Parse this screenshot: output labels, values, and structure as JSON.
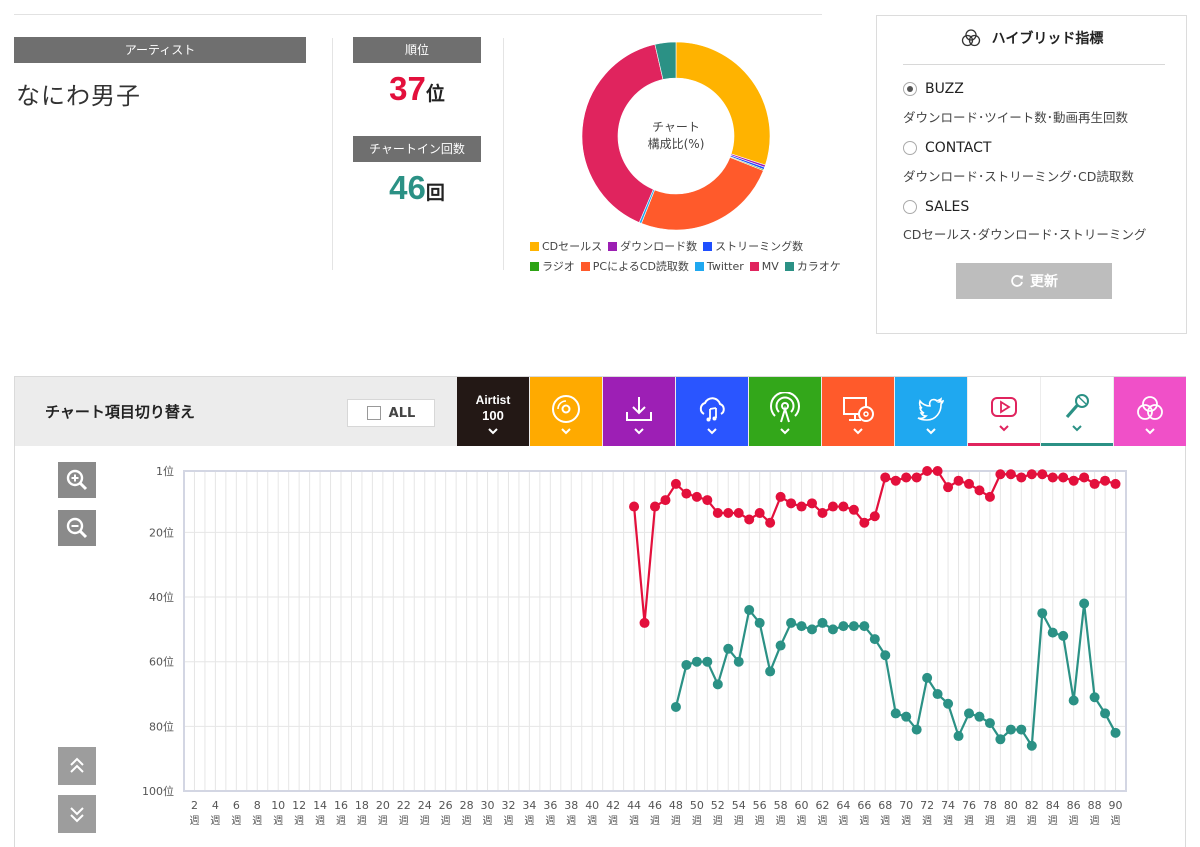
{
  "artist": {
    "label": "アーティスト",
    "name": "なにわ男子"
  },
  "rank": {
    "label": "順位",
    "value": "37",
    "unit": "位",
    "color": "#e3103c"
  },
  "chartin": {
    "label": "チャートイン回数",
    "value": "46",
    "unit": "回",
    "color": "#2b9185"
  },
  "donut": {
    "center_line1": "チャート",
    "center_line2": "構成比(%)",
    "slices": [
      {
        "name": "CDセールス",
        "value": 30,
        "color": "#ffb300"
      },
      {
        "name": "ダウンロード数",
        "value": 0.4,
        "color": "#9c1fb3"
      },
      {
        "name": "ストリーミング数",
        "value": 0.4,
        "color": "#1f4fff"
      },
      {
        "name": "ラジオ",
        "value": 0.2,
        "color": "#2da314"
      },
      {
        "name": "PCによるCD読取数",
        "value": 25,
        "color": "#ff5a2b"
      },
      {
        "name": "Twitter",
        "value": 0.4,
        "color": "#1fa8f0"
      },
      {
        "name": "MV",
        "value": 40,
        "color": "#e0245e"
      },
      {
        "name": "カラオケ",
        "value": 3.6,
        "color": "#2b9185"
      }
    ]
  },
  "hybrid": {
    "title": "ハイブリッド指標",
    "options": [
      {
        "label": "BUZZ",
        "desc": "ダウンロード･ツイート数･動画再生回数",
        "selected": true
      },
      {
        "label": "CONTACT",
        "desc": "ダウンロード･ストリーミング･CD読取数",
        "selected": false
      },
      {
        "label": "SALES",
        "desc": "CDセールス･ダウンロード･ストリーミング",
        "selected": false
      }
    ],
    "refresh_label": "更新"
  },
  "switcher": {
    "title": "チャート項目切り替え",
    "all_label": "ALL",
    "tabs": [
      {
        "key": "airtist",
        "label_line1": "Airtist",
        "label_line2": "100",
        "bg": "#231815",
        "icon": "airtist-100-logo"
      },
      {
        "key": "cd",
        "bg": "#ffaa00",
        "icon": "cd-disc-icon"
      },
      {
        "key": "download",
        "bg": "#9d1fb5",
        "icon": "download-icon"
      },
      {
        "key": "streaming",
        "bg": "#2a55ff",
        "icon": "cloud-music-icon"
      },
      {
        "key": "radio",
        "bg": "#33a71a",
        "icon": "radio-broadcast-icon"
      },
      {
        "key": "pc-read",
        "bg": "#ff5a2b",
        "icon": "pc-cd-icon"
      },
      {
        "key": "twitter",
        "bg": "#1fa8f0",
        "icon": "twitter-bird-icon"
      },
      {
        "key": "mv",
        "bg": "#ffffff",
        "icon": "youtube-play-icon",
        "accent": "#e0245e"
      },
      {
        "key": "karaoke",
        "bg": "#ffffff",
        "icon": "microphone-icon",
        "accent": "#2b9185"
      },
      {
        "key": "hybrid",
        "bg": "#f050c8",
        "icon": "hybrid-circles-icon"
      }
    ]
  },
  "chart_data": {
    "type": "line",
    "y_axis_reversed": true,
    "ylim": [
      1,
      100
    ],
    "y_ticks": [
      "1位",
      "20位",
      "40位",
      "60位",
      "80位",
      "100位"
    ],
    "x_ticks": [
      "2",
      "4",
      "6",
      "8",
      "10",
      "12",
      "14",
      "16",
      "18",
      "20",
      "22",
      "24",
      "26",
      "28",
      "30",
      "32",
      "34",
      "36",
      "38",
      "40",
      "42",
      "44",
      "46",
      "48",
      "50",
      "52",
      "54",
      "56",
      "58",
      "60",
      "62",
      "64",
      "66",
      "68",
      "70",
      "72",
      "74",
      "76",
      "78",
      "80",
      "82",
      "84",
      "86",
      "88",
      "90"
    ],
    "x_unit": "週",
    "xlim": [
      1,
      91
    ],
    "grid": true,
    "series": [
      {
        "key": "mv",
        "color": "#e3103c",
        "x": [
          44,
          45,
          46,
          47,
          48,
          49,
          50,
          51,
          52,
          53,
          54,
          55,
          56,
          57,
          58,
          59,
          60,
          61,
          62,
          63,
          64,
          65,
          66,
          67,
          68,
          69,
          70,
          71,
          72,
          73,
          74,
          75,
          76,
          77,
          78,
          79,
          80,
          81,
          82,
          83,
          84,
          85,
          86,
          87,
          88,
          89,
          90
        ],
        "y": [
          12,
          48,
          12,
          10,
          5,
          8,
          9,
          10,
          14,
          14,
          14,
          16,
          14,
          17,
          9,
          11,
          12,
          11,
          14,
          12,
          12,
          13,
          17,
          15,
          3,
          4,
          3,
          3,
          1,
          1,
          6,
          4,
          5,
          7,
          9,
          2,
          2,
          3,
          2,
          2,
          3,
          3,
          4,
          3,
          5,
          4,
          5
        ]
      },
      {
        "key": "karaoke",
        "color": "#2b9185",
        "x": [
          48,
          49,
          50,
          51,
          52,
          53,
          54,
          55,
          56,
          57,
          58,
          59,
          60,
          61,
          62,
          63,
          64,
          65,
          66,
          67,
          68,
          69,
          70,
          71,
          72,
          73,
          74,
          75,
          76,
          77,
          78,
          79,
          80,
          81,
          82,
          83,
          84,
          85,
          86,
          87,
          88,
          89,
          90
        ],
        "y": [
          74,
          61,
          60,
          60,
          67,
          56,
          60,
          44,
          48,
          63,
          55,
          48,
          49,
          50,
          48,
          50,
          49,
          49,
          49,
          53,
          58,
          76,
          77,
          81,
          65,
          70,
          73,
          83,
          76,
          77,
          79,
          84,
          81,
          81,
          86,
          45,
          51,
          52,
          72,
          42,
          71,
          76,
          82
        ]
      }
    ]
  }
}
